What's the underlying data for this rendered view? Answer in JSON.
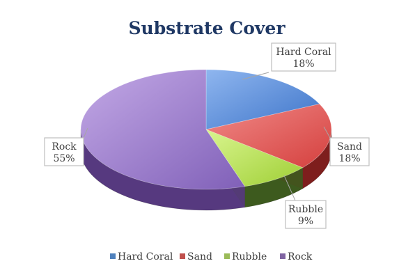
{
  "chart_data": {
    "type": "pie",
    "title": "Substrate Cover",
    "categories": [
      "Hard Coral",
      "Sand",
      "Rubble",
      "Rock"
    ],
    "values": [
      18,
      18,
      9,
      55
    ],
    "value_labels": [
      "18%",
      "18%",
      "9%",
      "55%"
    ],
    "colors": {
      "Hard Coral": "#5b8dd6",
      "Sand": "#e04f4d",
      "Rubble": "#b5e04c",
      "Rock": "#9b7cc9"
    },
    "legend_position": "bottom",
    "style": "3d"
  }
}
